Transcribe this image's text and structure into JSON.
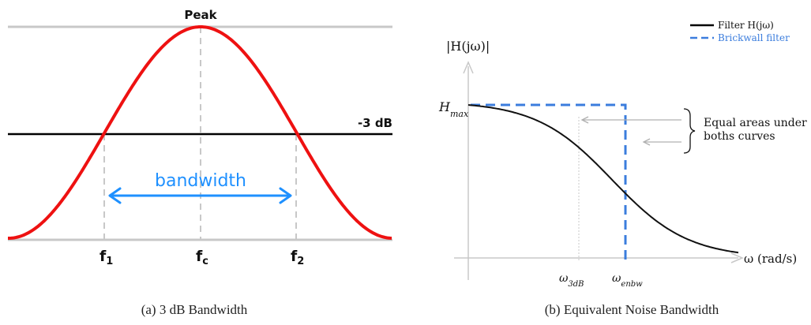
{
  "left": {
    "peak_label": "Peak",
    "level_label": "-3 dB",
    "bandwidth_label": "bandwidth",
    "f1": {
      "base": "f",
      "sub": "1"
    },
    "fc": {
      "base": "f",
      "sub": "c"
    },
    "f2": {
      "base": "f",
      "sub": "2"
    },
    "caption": "(a) 3 dB Bandwidth",
    "colors": {
      "curve": "#ee1111",
      "arrow": "#1e90ff",
      "grid": "#c8c8c8",
      "level": "#000000"
    }
  },
  "right": {
    "ylabel": "|H(jω)|",
    "xlabel": "ω (rad/s)",
    "hmax": {
      "base": "H",
      "sub": "max"
    },
    "w3db": {
      "base": "ω",
      "sub": "3dB"
    },
    "wenbw": {
      "base": "ω",
      "sub": "enbw"
    },
    "legend": [
      {
        "label": "Filter H(jω)",
        "color": "#000000",
        "style": "solid"
      },
      {
        "label": "Brickwall filter",
        "color": "#3b7ddd",
        "style": "dashed"
      }
    ],
    "annotation_line1": "Equal areas under",
    "annotation_line2": "boths curves",
    "caption": "(b) Equivalent Noise Bandwidth"
  }
}
